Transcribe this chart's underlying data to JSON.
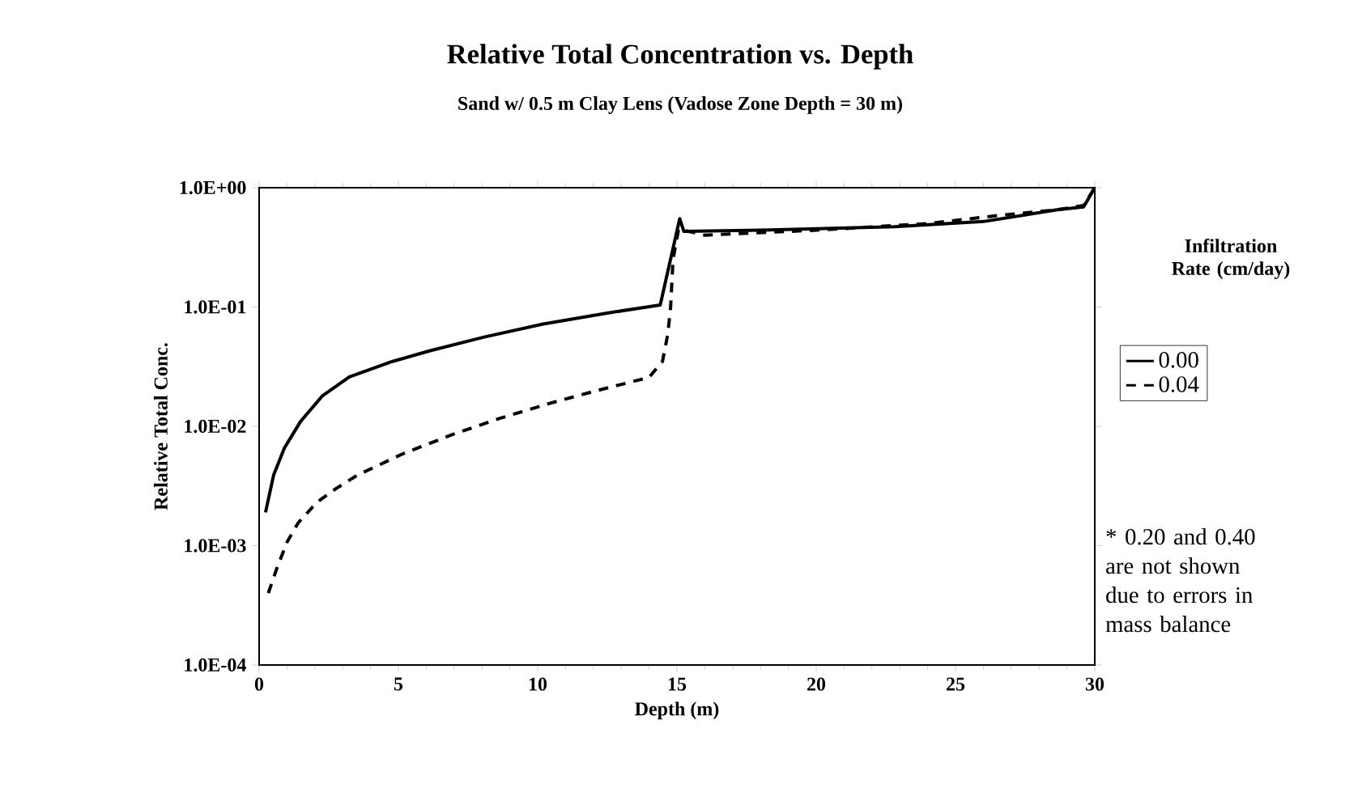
{
  "chart_data": {
    "type": "line",
    "title": "Relative Total Concentration vs. Depth",
    "subtitle": "Sand w/ 0.5 m Clay Lens (Vadose Zone Depth = 30 m)",
    "xlabel": "Depth (m)",
    "ylabel": "Relative Total Conc.",
    "legend_title": "Infiltration Rate (cm/day)",
    "annotations": [
      "* 0.20 and 0.40 are not shown due to errors in mass balance"
    ],
    "log": "y",
    "grid": false,
    "legend": "right",
    "marker": "none",
    "xlim": [
      0,
      30
    ],
    "xticks": [
      0,
      5,
      10,
      15,
      20,
      25,
      30
    ],
    "ylim": [
      0.0001,
      1
    ],
    "yticks": [
      {
        "value": 0.0001,
        "label": "1.0E-04"
      },
      {
        "value": 0.001,
        "label": "1.0E-03"
      },
      {
        "value": 0.01,
        "label": "1.0E-02"
      },
      {
        "value": 0.1,
        "label": "1.0E-01"
      },
      {
        "value": 1,
        "label": "1.0E+00"
      }
    ],
    "series": [
      {
        "name": "0.00",
        "color": "#000000",
        "line_style": "solid",
        "x": [
          0.23,
          0.52,
          0.91,
          1.49,
          2.27,
          3.24,
          4.79,
          6.14,
          8.08,
          10.2,
          12.5,
          14.4,
          15.1,
          15.25,
          18,
          22.8,
          26,
          28.6,
          29.6,
          30
        ],
        "values": [
          0.0019,
          0.0039,
          0.0066,
          0.011,
          0.018,
          0.026,
          0.035,
          0.043,
          0.056,
          0.072,
          0.089,
          0.104,
          0.55,
          0.43,
          0.44,
          0.47,
          0.52,
          0.65,
          0.69,
          1.0
        ]
      },
      {
        "name": "0.04",
        "color": "#000000",
        "line_style": "dashed",
        "x": [
          0.33,
          0.62,
          1.0,
          1.4,
          2.07,
          2.75,
          3.53,
          5.17,
          6.92,
          8.66,
          10.4,
          12.15,
          14.0,
          14.48,
          14.67,
          14.77,
          14.86,
          15.06,
          16.0,
          20,
          24,
          26.7,
          28.6,
          29.6,
          30
        ],
        "values": [
          0.0004,
          0.00063,
          0.00107,
          0.00155,
          0.0023,
          0.003,
          0.0039,
          0.0059,
          0.0085,
          0.0117,
          0.0155,
          0.02,
          0.0257,
          0.035,
          0.059,
          0.098,
          0.25,
          0.45,
          0.4,
          0.44,
          0.5,
          0.59,
          0.65,
          0.71,
          1.0
        ]
      }
    ]
  }
}
